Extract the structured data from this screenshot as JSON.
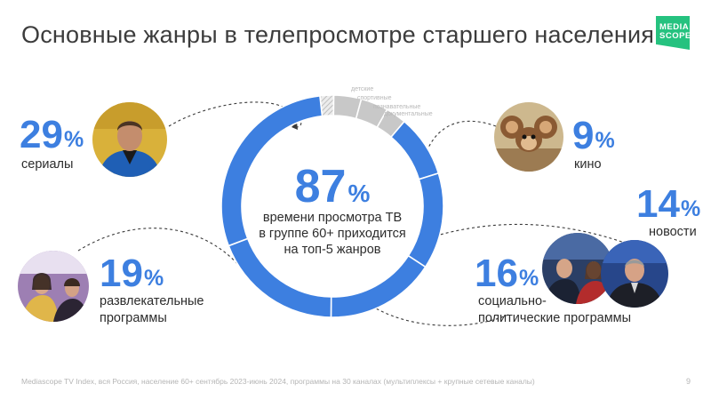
{
  "title": "Основные жанры в телепросмотре старшего населения",
  "logo": {
    "text": "MEDIA\nSCOPE",
    "color": "#25c27f"
  },
  "center": {
    "value": "87",
    "unit": "%",
    "text": "времени просмотра ТВ\nв группе 60+ приходится\nна топ-5 жанров"
  },
  "genres": [
    {
      "value": "29",
      "unit": "%",
      "label": "сериалы"
    },
    {
      "value": "19",
      "unit": "%",
      "label": "развлекательные\nпрограммы"
    },
    {
      "value": "9",
      "unit": "%",
      "label": "кино"
    },
    {
      "value": "14",
      "unit": "%",
      "label": "новости"
    },
    {
      "value": "16",
      "unit": "%",
      "label": "социально-\nполитические программы"
    }
  ],
  "small_labels": [
    "детские",
    "спортивные",
    "познавательные",
    "документальные"
  ],
  "footer": "Mediascope TV Index, вся Россия, население 60+ сентябрь 2023-июнь 2024, программы на 30 каналах (мультиплексы + крупные сетевые каналы)",
  "page_number": "9",
  "colors": {
    "accent": "#3d7fe0",
    "other": "#c8c8c8",
    "other_hatched": "#d6d6d6",
    "logo": "#25c27f"
  },
  "chart_data": {
    "type": "pie",
    "title": "",
    "total_top5_share": 87,
    "categories": [
      "сериалы",
      "кино",
      "новости",
      "социально-политические программы",
      "развлекательные программы",
      "детские",
      "спортивные",
      "познавательные",
      "документальные"
    ],
    "values": [
      29,
      9,
      14,
      16,
      19,
      2,
      4,
      4,
      3
    ],
    "value_unit": "%",
    "value_labels_shown": [
      true,
      true,
      true,
      true,
      true,
      false,
      false,
      false,
      false
    ],
    "highlighted": [
      true,
      true,
      true,
      true,
      true,
      false,
      false,
      false,
      false
    ],
    "start_category": "детские",
    "direction": "clockwise",
    "donut": true,
    "legend": "none"
  }
}
